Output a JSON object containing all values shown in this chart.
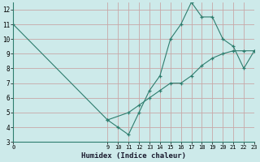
{
  "line1_x": [
    0,
    9,
    10,
    11,
    12,
    13,
    14,
    15,
    16,
    17,
    18,
    19,
    20,
    21,
    22,
    23
  ],
  "line1_y": [
    11,
    4.5,
    4.0,
    3.5,
    5.0,
    6.5,
    7.5,
    10.0,
    11.0,
    12.5,
    11.5,
    11.5,
    10.0,
    9.5,
    8.0,
    9.2
  ],
  "line2_x": [
    9,
    11,
    12,
    13,
    14,
    15,
    16,
    17,
    18,
    19,
    20,
    21,
    22,
    23
  ],
  "line2_y": [
    4.5,
    5.0,
    5.5,
    6.0,
    6.5,
    7.0,
    7.0,
    7.5,
    8.2,
    8.7,
    9.0,
    9.2,
    9.2,
    9.2
  ],
  "color": "#2e7d6e",
  "bg_color": "#cdeaea",
  "grid_color": "#c8a8a8",
  "xlabel": "Humidex (Indice chaleur)",
  "xlim": [
    0,
    23
  ],
  "ylim": [
    3,
    12.5
  ],
  "yticks": [
    3,
    4,
    5,
    6,
    7,
    8,
    9,
    10,
    11,
    12
  ],
  "xticks": [
    0,
    9,
    10,
    11,
    12,
    13,
    14,
    15,
    16,
    17,
    18,
    19,
    20,
    21,
    22,
    23
  ]
}
